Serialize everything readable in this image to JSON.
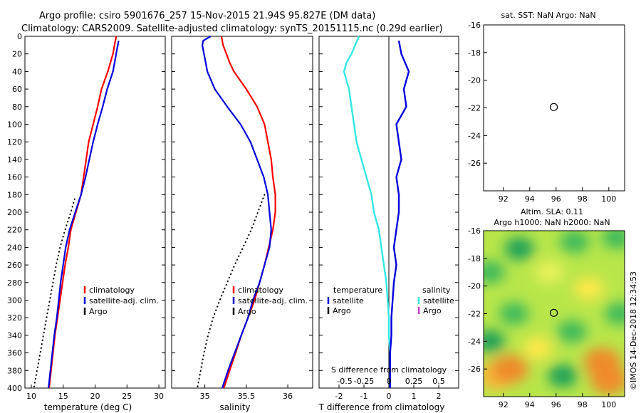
{
  "header": {
    "title_line1": "Argo profile: csiro 5901676_257 15-Nov-2015 21.94S 95.827E (DM data)",
    "title_line2": "Climatology: CARS2009. Satellite-adjusted climatology: synTS_20151115.nc (0.29d earlier)"
  },
  "colors": {
    "climatology": "#ff0000",
    "satellite": "#0000dd",
    "satellite_salinity": "#33e6e6",
    "argo": "#000000",
    "argo_salinity": "#cc33cc"
  },
  "watermark": "©IMOS 14-Dec-2018 12:34:53",
  "chart_data": [
    {
      "id": "temperature",
      "type": "line",
      "xlabel": "temperature (deg C)",
      "xlim": [
        9,
        31
      ],
      "ylim": [
        0,
        400
      ],
      "xticks": [
        10,
        15,
        20,
        25,
        30
      ],
      "yticks": [
        0,
        20,
        40,
        60,
        80,
        100,
        120,
        140,
        160,
        180,
        200,
        220,
        240,
        260,
        280,
        300,
        320,
        340,
        360,
        380,
        400
      ],
      "legend": [
        "climatology",
        "satellite-adj. clim.",
        "Argo"
      ],
      "series": [
        {
          "name": "climatology",
          "depth": [
            0,
            20,
            40,
            60,
            80,
            100,
            120,
            140,
            160,
            180,
            200,
            220,
            240,
            260,
            280,
            300,
            320,
            340,
            360,
            380,
            400
          ],
          "values": [
            23.3,
            22.8,
            22.0,
            21.0,
            20.4,
            19.7,
            19.0,
            18.6,
            18.2,
            17.8,
            17.0,
            16.2,
            15.8,
            15.3,
            14.9,
            14.5,
            14.1,
            13.7,
            13.4,
            13.1,
            12.8
          ]
        },
        {
          "name": "satellite-adj. clim.",
          "depth": [
            5,
            20,
            40,
            60,
            80,
            100,
            120,
            140,
            160,
            180,
            200,
            220,
            240,
            260,
            280,
            300,
            320,
            340,
            360,
            380,
            400
          ],
          "values": [
            23.7,
            23.3,
            22.8,
            21.9,
            21.2,
            20.4,
            19.7,
            19.1,
            18.5,
            17.8,
            16.9,
            16.0,
            15.4,
            15.0,
            14.6,
            14.3,
            14.0,
            13.6,
            13.3,
            13.0,
            12.7
          ]
        },
        {
          "name": "Argo",
          "depth": [
            185,
            200,
            220,
            240,
            260,
            280,
            300,
            320,
            340,
            360,
            380,
            400
          ],
          "values": [
            16.8,
            16.2,
            15.3,
            14.5,
            13.9,
            13.4,
            12.9,
            12.4,
            11.9,
            11.4,
            10.9,
            10.4
          ]
        }
      ]
    },
    {
      "id": "salinity",
      "type": "line",
      "xlabel": "salinity",
      "xlim": [
        34.6,
        36.3
      ],
      "ylim": [
        0,
        400
      ],
      "xticks": [
        35,
        35.5,
        36
      ],
      "legend": [
        "climatology",
        "satellite-adj. clim.",
        "Argo"
      ],
      "series": [
        {
          "name": "climatology",
          "depth": [
            0,
            10,
            20,
            30,
            40,
            60,
            80,
            100,
            120,
            140,
            160,
            180,
            200,
            220,
            240,
            260,
            280,
            300,
            320,
            340,
            360,
            380,
            400
          ],
          "values": [
            35.2,
            35.22,
            35.26,
            35.3,
            35.35,
            35.5,
            35.63,
            35.72,
            35.76,
            35.8,
            35.82,
            35.85,
            35.85,
            35.82,
            35.77,
            35.72,
            35.66,
            35.6,
            35.52,
            35.44,
            35.37,
            35.3,
            35.23
          ]
        },
        {
          "name": "satellite-adj. clim.",
          "depth": [
            0,
            5,
            10,
            20,
            30,
            40,
            60,
            80,
            100,
            120,
            140,
            160,
            180,
            200,
            220,
            240,
            260,
            280,
            300,
            320,
            340,
            360,
            380,
            400
          ],
          "values": [
            35.07,
            34.98,
            34.97,
            34.99,
            35.01,
            35.03,
            35.12,
            35.27,
            35.43,
            35.55,
            35.63,
            35.71,
            35.76,
            35.78,
            35.8,
            35.78,
            35.72,
            35.66,
            35.58,
            35.52,
            35.44,
            35.36,
            35.28,
            35.21
          ]
        },
        {
          "name": "Argo",
          "depth": [
            180,
            200,
            220,
            240,
            260,
            280,
            300,
            320,
            340,
            360,
            380,
            400
          ],
          "values": [
            35.72,
            35.64,
            35.56,
            35.46,
            35.36,
            35.27,
            35.18,
            35.1,
            35.04,
            34.99,
            34.95,
            34.91
          ]
        }
      ]
    },
    {
      "id": "difference",
      "type": "line",
      "xlabel": "T difference from climatology",
      "xlabel_top": "S difference from climatology",
      "xlim": [
        -2.8,
        2.8
      ],
      "ylim": [
        0,
        400
      ],
      "xticks": [
        -2,
        -1,
        0,
        1,
        2
      ],
      "xticks_s_labels": [
        "-0.5",
        "-0.25",
        "0",
        "0.25",
        "0.5"
      ],
      "legend_t": {
        "header": "temperature",
        "items": [
          "satellite",
          "Argo"
        ]
      },
      "legend_s": {
        "header": "salinity",
        "items": [
          "satellite",
          "Argo"
        ]
      },
      "series": [
        {
          "name": "T satellite",
          "depth": [
            5,
            20,
            40,
            60,
            80,
            100,
            120,
            140,
            160,
            180,
            200,
            220,
            240,
            260,
            280,
            300,
            320,
            340,
            360,
            380,
            400
          ],
          "values": [
            0.4,
            0.5,
            0.8,
            0.6,
            0.7,
            0.3,
            0.4,
            0.5,
            0.3,
            0.4,
            0.4,
            0.3,
            0.2,
            0.3,
            0.2,
            0.15,
            0.1,
            0.1,
            0.05,
            0.05,
            0.05
          ]
        },
        {
          "name": "S satellite",
          "depth": [
            0,
            20,
            30,
            40,
            50,
            60,
            80,
            100,
            120,
            140,
            160,
            180,
            200,
            220,
            240,
            260,
            280,
            300,
            320,
            340,
            360,
            380,
            400
          ],
          "values": [
            -1.2,
            -1.5,
            -1.7,
            -1.8,
            -1.7,
            -1.6,
            -1.5,
            -1.4,
            -1.3,
            -1.1,
            -0.9,
            -0.7,
            -0.6,
            -0.4,
            -0.3,
            -0.2,
            -0.1,
            -0.05,
            0.0,
            0.0,
            0.05,
            0.05,
            0.05
          ]
        }
      ]
    },
    {
      "id": "sst_map",
      "type": "scatter",
      "title": "sat. SST: NaN Argo: NaN",
      "xlim": [
        90.5,
        101.2
      ],
      "ylim": [
        -28,
        -16
      ],
      "xticks": [
        92,
        94,
        96,
        98,
        100
      ],
      "yticks": [
        -16,
        -18,
        -20,
        -22,
        -24,
        -26
      ],
      "point": {
        "lon": 95.827,
        "lat": -21.94
      }
    },
    {
      "id": "sla_map",
      "type": "heatmap",
      "title_line1": "Altim. SLA: 0.11",
      "title_line2": "Argo h1000: NaN h2000: NaN",
      "xlim": [
        90.5,
        101.2
      ],
      "ylim": [
        -28,
        -16
      ],
      "xticks": [
        92,
        94,
        96,
        98,
        100
      ],
      "yticks": [
        -16,
        -18,
        -20,
        -22,
        -24,
        -26
      ],
      "point": {
        "lon": 95.827,
        "lat": -21.94
      },
      "blobs": [
        {
          "lon": 91.5,
          "lat": -26.5,
          "value": 0.35
        },
        {
          "lon": 92.5,
          "lat": -26.0,
          "value": 0.4
        },
        {
          "lon": 99.5,
          "lat": -25.5,
          "value": 0.45
        },
        {
          "lon": 100.0,
          "lat": -26.8,
          "value": 0.4
        },
        {
          "lon": 98.5,
          "lat": -20.2,
          "value": 0.25
        },
        {
          "lon": 94.6,
          "lat": -24.5,
          "value": 0.2
        },
        {
          "lon": 93.2,
          "lat": -17.3,
          "value": -0.25
        },
        {
          "lon": 97.4,
          "lat": -16.8,
          "value": -0.2
        },
        {
          "lon": 100.6,
          "lat": -16.5,
          "value": -0.2
        },
        {
          "lon": 91.0,
          "lat": -19.0,
          "value": -0.2
        },
        {
          "lon": 91.0,
          "lat": -24.0,
          "value": -0.25
        },
        {
          "lon": 92.8,
          "lat": -22.0,
          "value": -0.18
        },
        {
          "lon": 96.5,
          "lat": -26.5,
          "value": -0.22
        },
        {
          "lon": 100.8,
          "lat": -22.0,
          "value": -0.2
        },
        {
          "lon": 97.2,
          "lat": -23.3,
          "value": -0.15
        },
        {
          "lon": 95.5,
          "lat": -19.0,
          "value": 0.1
        }
      ]
    }
  ]
}
